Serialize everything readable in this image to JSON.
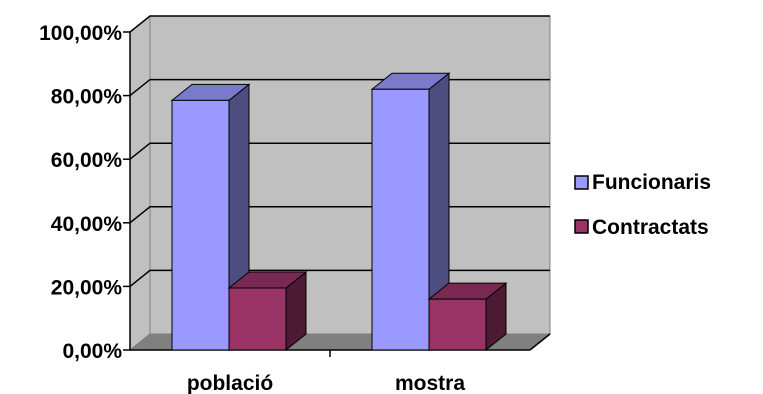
{
  "chart_data": {
    "type": "bar",
    "three_d": true,
    "categories": [
      "població",
      "mostra"
    ],
    "series": [
      {
        "name": "Funcionaris",
        "values": [
          78.5,
          82.0
        ],
        "color": "#9999ff",
        "side_color": "#4d4d80",
        "top_color": "#7a7acc"
      },
      {
        "name": "Contractats",
        "values": [
          19.5,
          16.0
        ],
        "color": "#993366",
        "side_color": "#4d1a33",
        "top_color": "#7a2952"
      }
    ],
    "yticks": [
      "0,00%",
      "20,00%",
      "40,00%",
      "60,00%",
      "80,00%",
      "100,00%"
    ],
    "ylim": [
      0,
      100
    ],
    "grid": true,
    "legend_position": "right",
    "colors": {
      "wall": "#c0c0c0",
      "floor": "#808080",
      "grid": "#000000"
    }
  }
}
